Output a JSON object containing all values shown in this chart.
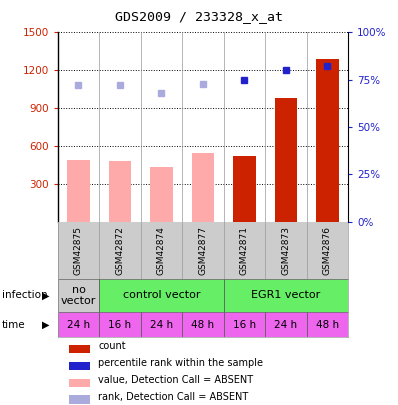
{
  "title": "GDS2009 / 233328_x_at",
  "samples": [
    "GSM42875",
    "GSM42872",
    "GSM42874",
    "GSM42877",
    "GSM42871",
    "GSM42873",
    "GSM42876"
  ],
  "bar_values": [
    490,
    480,
    430,
    545,
    520,
    980,
    1290
  ],
  "bar_absent": [
    true,
    true,
    true,
    true,
    false,
    false,
    false
  ],
  "rank_values": [
    72,
    72,
    68,
    73,
    75,
    80,
    82
  ],
  "rank_absent": [
    true,
    true,
    true,
    true,
    false,
    false,
    false
  ],
  "time_labels": [
    "24 h",
    "16 h",
    "24 h",
    "48 h",
    "16 h",
    "24 h",
    "48 h"
  ],
  "time_color": "#ee66ee",
  "ylim_left": [
    0,
    1500
  ],
  "ylim_right": [
    0,
    100
  ],
  "yticks_left": [
    300,
    600,
    900,
    1200,
    1500
  ],
  "yticks_right": [
    0,
    25,
    50,
    75,
    100
  ],
  "ytick_labels_right": [
    "0%",
    "25%",
    "50%",
    "75%",
    "100%"
  ],
  "color_red": "#cc2200",
  "color_pink": "#ffaaaa",
  "color_blue": "#2222cc",
  "color_lightblue": "#aaaadd",
  "grid_color": "#888888",
  "bg_color": "#cccccc",
  "infection_groups": [
    {
      "label": "no\nvector",
      "start": 0,
      "end": 1,
      "color": "#cccccc"
    },
    {
      "label": "control vector",
      "start": 1,
      "end": 4,
      "color": "#66ee66"
    },
    {
      "label": "EGR1 vector",
      "start": 4,
      "end": 7,
      "color": "#66ee66"
    }
  ],
  "legend_items": [
    {
      "color": "#cc2200",
      "label": "count"
    },
    {
      "color": "#2222cc",
      "label": "percentile rank within the sample"
    },
    {
      "color": "#ffaaaa",
      "label": "value, Detection Call = ABSENT"
    },
    {
      "color": "#aaaadd",
      "label": "rank, Detection Call = ABSENT"
    }
  ]
}
